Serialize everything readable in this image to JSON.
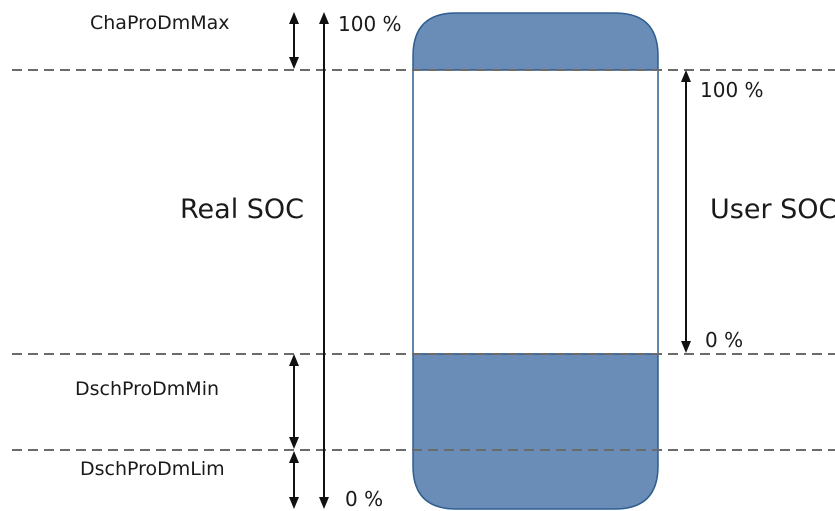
{
  "labels": {
    "cha_pro_dm_max": "ChaProDmMax",
    "dsch_pro_dm_min": "DschProDmMin",
    "dsch_pro_dm_lim": "DschProDmLim",
    "real_soc": "Real SOC",
    "user_soc": "User SOC",
    "real_top_pct": "100 %",
    "real_bottom_pct": "0 %",
    "user_top_pct": "100 %",
    "user_bottom_pct": "0 %"
  },
  "colors": {
    "battery_fill": "#6a8db8",
    "battery_stroke": "#2f5d8f",
    "dashed_line": "#6b6b6b",
    "arrow": "#111111"
  }
}
